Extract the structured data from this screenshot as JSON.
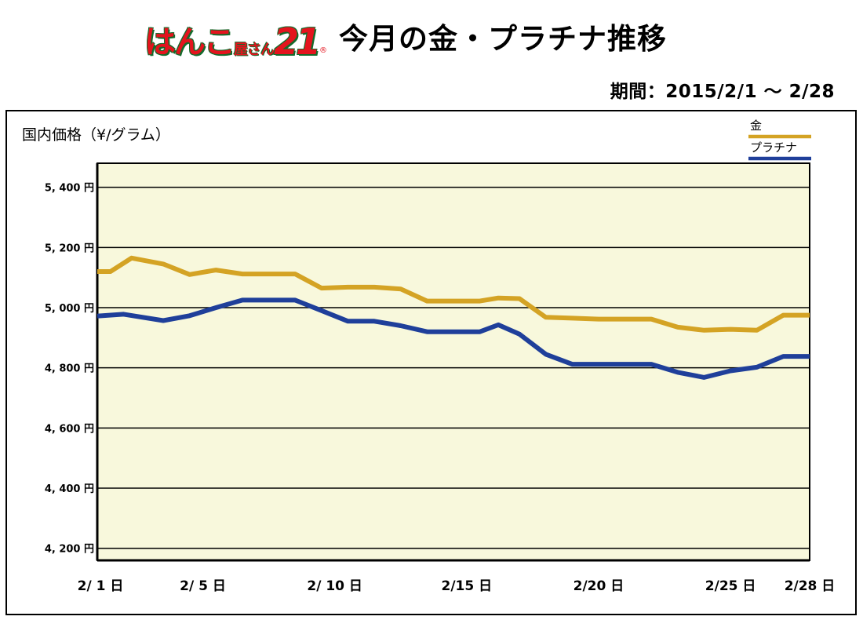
{
  "header": {
    "logo_main": "はんこ",
    "logo_sub": "屋さん",
    "logo_num": "21",
    "logo_reg": "®",
    "title": "今月の金・プラチナ推移",
    "period": "期間：2015/2/1 〜 2/28"
  },
  "colors": {
    "gold": "#d4a324",
    "platinum": "#1f3f9a",
    "plot_bg": "#f8f8dc",
    "grid": "#000000"
  },
  "chart_data": {
    "type": "line",
    "ylabel": "国内価格（¥/グラム）",
    "xlabel": "",
    "ylim": [
      4160,
      5480
    ],
    "xlim": [
      1,
      28
    ],
    "grid": true,
    "legend_position": "top-right",
    "y_ticks": [
      {
        "value": 5400,
        "label": "5, 400 円"
      },
      {
        "value": 5200,
        "label": "5, 200 円"
      },
      {
        "value": 5000,
        "label": "5, 000 円"
      },
      {
        "value": 4800,
        "label": "4, 800 円"
      },
      {
        "value": 4600,
        "label": "4, 600 円"
      },
      {
        "value": 4400,
        "label": "4, 400 円"
      },
      {
        "value": 4200,
        "label": "4, 200 円"
      }
    ],
    "x_ticks": [
      {
        "value": 1,
        "label": "2/ 1 日"
      },
      {
        "value": 5,
        "label": "2/ 5 日"
      },
      {
        "value": 10,
        "label": "2/ 10 日"
      },
      {
        "value": 15,
        "label": "2/15 日"
      },
      {
        "value": 20,
        "label": "2/20 日"
      },
      {
        "value": 25,
        "label": "2/25 日"
      },
      {
        "value": 28,
        "label": "2/28 日"
      }
    ],
    "series": [
      {
        "name": "金",
        "color": "#d4a324",
        "points": [
          [
            1.0,
            5120
          ],
          [
            1.5,
            5120
          ],
          [
            2.3,
            5165
          ],
          [
            3.5,
            5145
          ],
          [
            4.5,
            5110
          ],
          [
            5.5,
            5125
          ],
          [
            6.5,
            5112
          ],
          [
            8.5,
            5112
          ],
          [
            9.5,
            5065
          ],
          [
            10.5,
            5068
          ],
          [
            11.5,
            5068
          ],
          [
            12.5,
            5062
          ],
          [
            13.5,
            5022
          ],
          [
            14.5,
            5022
          ],
          [
            15.5,
            5022
          ],
          [
            16.2,
            5032
          ],
          [
            17.0,
            5030
          ],
          [
            18.0,
            4968
          ],
          [
            19.0,
            4965
          ],
          [
            20.0,
            4962
          ],
          [
            22.0,
            4962
          ],
          [
            23.0,
            4935
          ],
          [
            24.0,
            4925
          ],
          [
            25.0,
            4928
          ],
          [
            26.0,
            4925
          ],
          [
            27.0,
            4975
          ],
          [
            28.0,
            4975
          ]
        ]
      },
      {
        "name": "プラチナ",
        "color": "#1f3f9a",
        "points": [
          [
            1.0,
            4972
          ],
          [
            2.0,
            4978
          ],
          [
            3.5,
            4957
          ],
          [
            4.5,
            4973
          ],
          [
            5.5,
            5000
          ],
          [
            6.5,
            5025
          ],
          [
            8.5,
            5025
          ],
          [
            9.5,
            4990
          ],
          [
            10.5,
            4955
          ],
          [
            11.5,
            4955
          ],
          [
            12.5,
            4940
          ],
          [
            13.5,
            4920
          ],
          [
            15.5,
            4920
          ],
          [
            16.2,
            4943
          ],
          [
            17.0,
            4912
          ],
          [
            18.0,
            4845
          ],
          [
            19.0,
            4812
          ],
          [
            22.0,
            4812
          ],
          [
            23.0,
            4785
          ],
          [
            24.0,
            4768
          ],
          [
            25.0,
            4790
          ],
          [
            26.0,
            4802
          ],
          [
            27.0,
            4838
          ],
          [
            28.0,
            4838
          ]
        ]
      }
    ]
  }
}
